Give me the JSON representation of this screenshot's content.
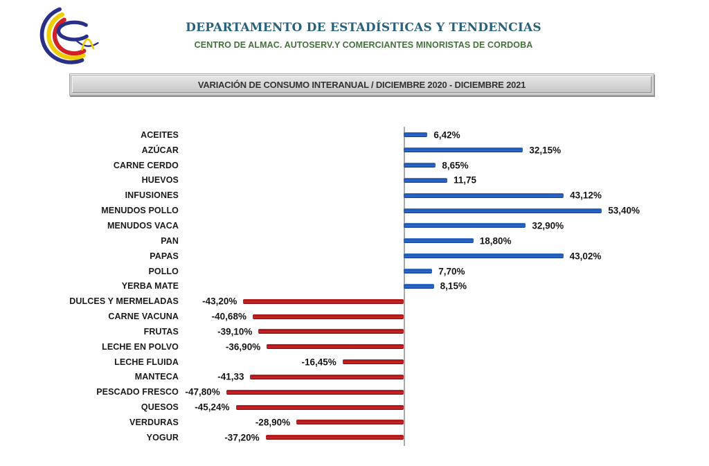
{
  "header": {
    "org_title": "DEPARTAMENTO DE ESTADÍSTICAS Y TENDENCIAS",
    "org_subtitle": "CENTRO DE ALMAC. AUTOSERV.Y COMERCIANTES MINORISTAS DE CORDOBA",
    "logo_name": "caac-swoosh-logo"
  },
  "title_bar": {
    "text": "VARIACIÓN DE CONSUMO INTERANUAL / DICIEMBRE 2020 - DICIEMBRE 2021"
  },
  "colors": {
    "org_title": "#27617c",
    "org_subtitle": "#44703c",
    "positive_bar": "#2063c8",
    "negative_bar": "#c81e22",
    "axis": "#aaaaaa",
    "logo_navy": "#2a2f88",
    "logo_yellow": "#f0cd00",
    "logo_red": "#cf2127"
  },
  "chart_data": {
    "type": "bar",
    "orientation": "horizontal",
    "title": "VARIACIÓN DE CONSUMO INTERANUAL / DICIEMBRE 2020 - DICIEMBRE 2021",
    "xlabel": "",
    "ylabel": "",
    "xlim": [
      -60,
      60
    ],
    "baseline": 0,
    "grid": false,
    "legend": false,
    "categories": [
      "ACEITES",
      "AZÚCAR",
      "CARNE CERDO",
      "HUEVOS",
      "INFUSIONES",
      "MENUDOS POLLO",
      "MENUDOS VACA",
      "PAN",
      "PAPAS",
      "POLLO",
      "YERBA MATE",
      "DULCES Y MERMELADAS",
      "CARNE VACUNA",
      "FRUTAS",
      "LECHE EN POLVO",
      "LECHE FLUIDA",
      "MANTECA",
      "PESCADO FRESCO",
      "QUESOS",
      "VERDURAS",
      "YOGUR"
    ],
    "values": [
      6.42,
      32.15,
      8.65,
      11.75,
      43.12,
      53.4,
      32.9,
      18.8,
      43.02,
      7.7,
      8.15,
      -43.2,
      -40.68,
      -39.1,
      -36.9,
      -16.45,
      -41.33,
      -47.8,
      -45.24,
      -28.9,
      -37.2
    ],
    "value_labels": [
      "6,42%",
      "32,15%",
      "8,65%",
      "11,75",
      "43,12%",
      "53,40%",
      "32,90%",
      "18,80%",
      "43,02%",
      "7,70%",
      "8,15%",
      "-43,20%",
      "-40,68%",
      "-39,10%",
      "-36,90%",
      "-16,45%",
      "-41,33",
      "-47,80%",
      "-45,24%",
      "-28,90%",
      "-37,20%"
    ]
  }
}
